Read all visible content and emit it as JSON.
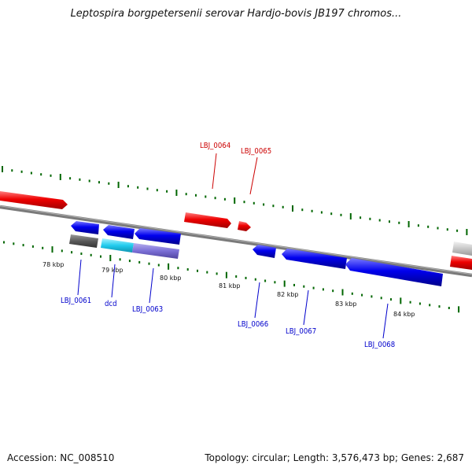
{
  "title": "Leptospira borgpetersenii serovar Hardjo-bovis JB197 chromos...",
  "footer": {
    "accession": "Accession: NC_008510",
    "summary": "Topology: circular; Length: 3,576,473 bp; Genes: 2,687"
  },
  "colors": {
    "forward_gene": "#e80000",
    "reverse_gene": "#0000dd",
    "forward_label": "#cc0000",
    "reverse_label": "#0000cc",
    "backbone": "#808080",
    "tick": "#006600",
    "cds_cyan": "#22ccee",
    "cds_purple": "#7b6fd6",
    "cds_dark_gray": "#5a5a5a",
    "cds_light_gray": "#c8c8c8"
  },
  "kbp_ticks": [
    "78 kbp",
    "79 kbp",
    "80 kbp",
    "81 kbp",
    "82 kbp",
    "83 kbp",
    "84 kbp"
  ],
  "gene_labels": {
    "lbj_0061": "LBJ_0061",
    "dcd": "dcd",
    "lbj_0063": "LBJ_0063",
    "lbj_0064": "LBJ_0064",
    "lbj_0065": "LBJ_0065",
    "lbj_0066": "LBJ_0066",
    "lbj_0067": "LBJ_0067",
    "lbj_0068": "LBJ_0068"
  }
}
